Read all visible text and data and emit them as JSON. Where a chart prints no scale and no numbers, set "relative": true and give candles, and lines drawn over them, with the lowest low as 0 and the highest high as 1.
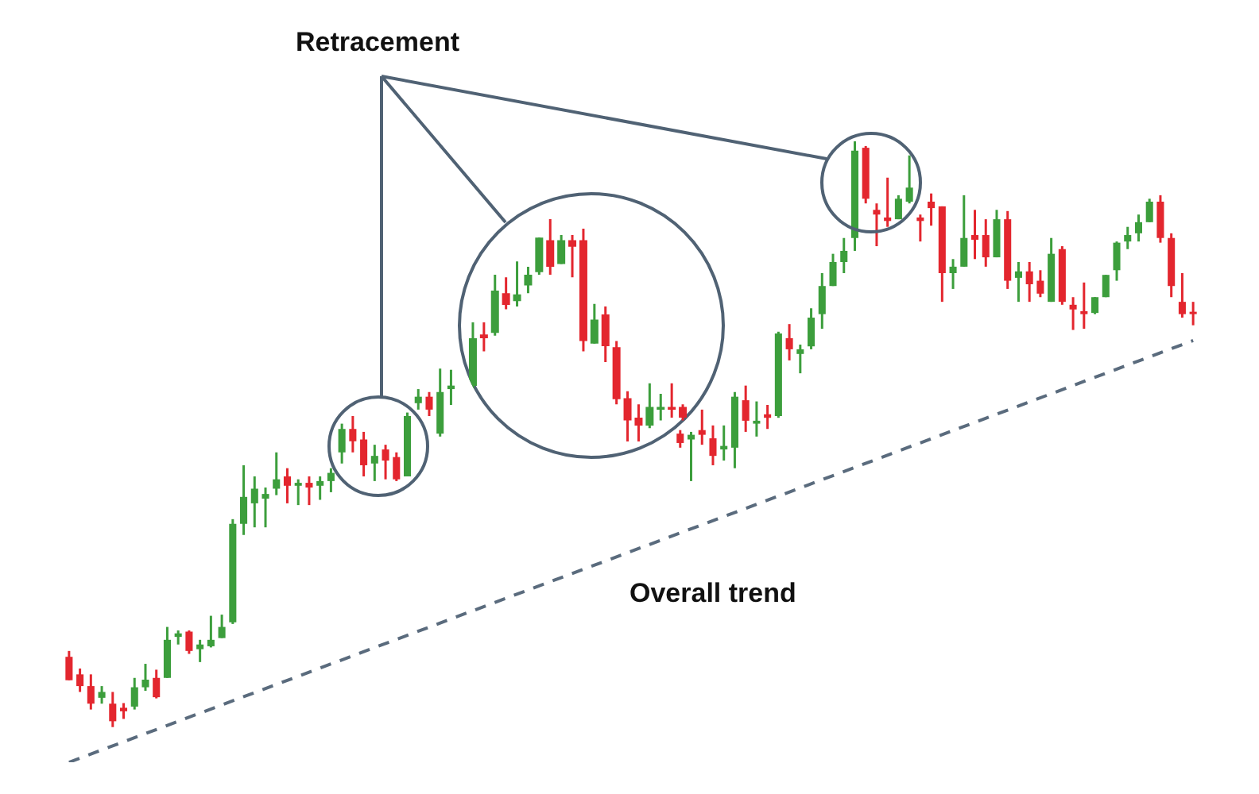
{
  "chart_data": [
    {
      "type": "candlestick",
      "relative": true,
      "categories": [
        null,
        null,
        null,
        null,
        null,
        null,
        null,
        null,
        null,
        null,
        null,
        null,
        null,
        null,
        null,
        null,
        null,
        null,
        null,
        null,
        null,
        null,
        null,
        null,
        null,
        null,
        null,
        null,
        null,
        null,
        null,
        null,
        null,
        null,
        null,
        null,
        null,
        null,
        null,
        null,
        null,
        null,
        null,
        null,
        null,
        null,
        null,
        null,
        null,
        null,
        null,
        null,
        null,
        null,
        null,
        null,
        null,
        null,
        null,
        null,
        null,
        null,
        null,
        null,
        null,
        null,
        null,
        null,
        null,
        null,
        null,
        null,
        null,
        null,
        null,
        null,
        null,
        null,
        null,
        null,
        null,
        null,
        null,
        null,
        null,
        null,
        null,
        null,
        null,
        null,
        null,
        null,
        null,
        null,
        null,
        null,
        null,
        null,
        null,
        null,
        null,
        null,
        null,
        null
      ],
      "ohlc": [
        [
          0.12,
          0.13,
          0.08,
          0.08
        ],
        [
          0.09,
          0.1,
          0.06,
          0.07
        ],
        [
          0.07,
          0.09,
          0.03,
          0.04
        ],
        [
          0.05,
          0.07,
          0.04,
          0.06
        ],
        [
          0.04,
          0.06,
          0,
          0.01
        ],
        [
          0.033,
          0.041,
          0.014,
          0.027
        ],
        [
          0.035,
          0.084,
          0.03,
          0.068
        ],
        [
          0.068,
          0.108,
          0.062,
          0.081
        ],
        [
          0.084,
          0.098,
          0.049,
          0.051
        ],
        [
          0.084,
          0.171,
          0.084,
          0.149
        ],
        [
          0.154,
          0.165,
          0.141,
          0.16
        ],
        [
          0.163,
          0.165,
          0.125,
          0.13
        ],
        [
          0.133,
          0.149,
          0.111,
          0.141
        ],
        [
          0.138,
          0.19,
          0.136,
          0.149
        ],
        [
          0.152,
          0.192,
          0.152,
          0.171
        ],
        [
          0.179,
          0.355,
          0.176,
          0.347
        ],
        [
          0.347,
          0.447,
          0.328,
          0.393
        ],
        [
          0.382,
          0.428,
          0.341,
          0.407
        ],
        [
          0.39,
          0.409,
          0.341,
          0.398
        ],
        [
          0.407,
          0.469,
          0.396,
          0.423
        ],
        [
          0.428,
          0.442,
          0.382,
          0.412
        ],
        [
          0.412,
          0.423,
          0.379,
          0.417
        ],
        [
          0.417,
          0.428,
          0.379,
          0.409
        ],
        [
          0.412,
          0.428,
          0.388,
          0.42
        ],
        [
          0.42,
          0.442,
          0.401,
          0.434
        ],
        [
          0.469,
          0.518,
          0.45,
          0.509
        ],
        [
          0.509,
          0.531,
          0.469,
          0.488
        ],
        [
          0.491,
          0.504,
          0.428,
          0.447
        ],
        [
          0.45,
          0.482,
          0.42,
          0.463
        ],
        [
          0.474,
          0.482,
          0.423,
          0.455
        ],
        [
          0.461,
          0.469,
          0.42,
          0.423
        ],
        [
          0.428,
          0.537,
          0.428,
          0.531
        ],
        [
          0.553,
          0.577,
          0.542,
          0.564
        ],
        [
          0.564,
          0.572,
          0.531,
          0.542
        ],
        [
          0.501,
          0.612,
          0.496,
          0.572
        ],
        [
          0.577,
          0.61,
          0.55,
          0.583
        ],
        null,
        null,
        null,
        null,
        null,
        null,
        null,
        null,
        null,
        null,
        null,
        null,
        null,
        null,
        null,
        null,
        null,
        null,
        null,
        null,
        [
          0.501,
          0.507,
          0.477,
          0.485
        ],
        [
          0.491,
          0.504,
          0.42,
          0.499
        ],
        [
          0.507,
          0.542,
          0.482,
          0.499
        ],
        [
          0.493,
          0.515,
          0.447,
          0.463
        ],
        [
          0.474,
          0.515,
          0.455,
          0.48
        ],
        [
          0.477,
          0.572,
          0.442,
          0.564
        ],
        [
          0.558,
          0.583,
          0.504,
          0.523
        ],
        [
          0.518,
          0.556,
          0.496,
          0.523
        ],
        [
          0.534,
          0.55,
          0.509,
          0.528
        ],
        [
          0.531,
          0.675,
          0.528,
          0.672
        ],
        [
          0.664,
          0.688,
          0.626,
          0.645
        ],
        [
          0.637,
          0.653,
          0.604,
          0.645
        ],
        [
          0.65,
          0.715,
          0.645,
          0.699
        ],
        [
          0.705,
          0.775,
          0.68,
          0.753
        ],
        [
          0.753,
          0.808,
          0.753,
          0.794
        ],
        [
          0.794,
          0.835,
          0.775,
          0.813
        ],
        [
          0.835,
          1,
          0.813,
          0.984
        ],
        [
          0.989,
          0.992,
          0.894,
          0.902
        ],
        [
          0.883,
          0.894,
          0.821,
          0.875
        ],
        [
          0.87,
          0.938,
          0.854,
          0.864
        ],
        [
          0.867,
          0.908,
          0.867,
          0.902
        ],
        [
          0.897,
          0.976,
          0.894,
          0.921
        ],
        [
          0.87,
          0.875,
          0.829,
          0.864
        ],
        [
          0.897,
          0.911,
          0.856,
          0.886
        ],
        [
          0.889,
          0.889,
          0.726,
          0.775
        ],
        [
          0.775,
          0.799,
          0.748,
          0.786
        ],
        [
          0.786,
          0.908,
          0.786,
          0.835
        ],
        [
          0.84,
          0.883,
          0.799,
          0.832
        ],
        [
          0.84,
          0.867,
          0.786,
          0.802
        ],
        [
          0.802,
          0.883,
          0.802,
          0.867
        ],
        [
          0.867,
          0.881,
          0.748,
          0.762
        ],
        [
          0.767,
          0.794,
          0.726,
          0.778
        ],
        [
          0.778,
          0.794,
          0.726,
          0.756
        ],
        [
          0.762,
          0.78,
          0.734,
          0.74
        ],
        [
          0.726,
          0.835,
          0.726,
          0.808
        ],
        [
          0.816,
          0.821,
          0.721,
          0.726
        ],
        [
          0.721,
          0.734,
          0.678,
          0.713
        ],
        [
          0.71,
          0.759,
          0.68,
          0.705
        ],
        [
          0.707,
          0.734,
          0.705,
          0.734
        ],
        [
          0.734,
          0.772,
          0.734,
          0.772
        ],
        [
          0.78,
          0.829,
          0.762,
          0.827
        ],
        [
          0.829,
          0.854,
          0.816,
          0.84
        ],
        [
          0.843,
          0.875,
          0.829,
          0.862
        ],
        [
          0.862,
          0.902,
          0.862,
          0.897
        ],
        [
          0.897,
          0.908,
          0.827,
          0.835
        ],
        [
          0.835,
          0.843,
          0.734,
          0.753
        ],
        [
          0.726,
          0.775,
          0.699,
          0.705
        ],
        [
          0.707,
          0.726,
          0.686,
          0.705
        ]
      ],
      "colors": [
        "#e3262e",
        "#e3262e",
        "#e3262e",
        "#3c9e3c",
        "#e3262e",
        "#e3262e",
        "#3c9e3c",
        "#3c9e3c",
        "#e3262e",
        "#3c9e3c",
        "#3c9e3c",
        "#e3262e",
        "#3c9e3c",
        "#3c9e3c",
        "#3c9e3c",
        "#3c9e3c",
        "#3c9e3c",
        "#3c9e3c",
        "#3c9e3c",
        "#3c9e3c",
        "#e3262e",
        "#3c9e3c",
        "#e3262e",
        "#3c9e3c",
        "#3c9e3c",
        "#3c9e3c",
        "#e3262e",
        "#e3262e",
        "#3c9e3c",
        "#e3262e",
        "#e3262e",
        "#3c9e3c",
        "#3c9e3c",
        "#e3262e",
        "#3c9e3c",
        "#3c9e3c",
        null,
        null,
        null,
        null,
        null,
        null,
        null,
        null,
        null,
        null,
        null,
        null,
        null,
        null,
        null,
        null,
        null,
        null,
        null,
        null,
        "#e3262e",
        "#3c9e3c",
        "#e3262e",
        "#e3262e",
        "#3c9e3c",
        "#3c9e3c",
        "#e3262e",
        "#3c9e3c",
        "#e3262e",
        "#3c9e3c",
        "#e3262e",
        "#3c9e3c",
        "#3c9e3c",
        "#3c9e3c",
        "#3c9e3c",
        "#3c9e3c",
        "#3c9e3c",
        "#e3262e",
        "#e3262e",
        "#e3262e",
        "#3c9e3c",
        "#3c9e3c",
        "#e3262e",
        "#e3262e",
        "#e3262e",
        "#3c9e3c",
        "#3c9e3c",
        "#e3262e",
        "#e3262e",
        "#3c9e3c",
        "#e3262e",
        "#3c9e3c",
        "#e3262e",
        "#e3262e",
        "#3c9e3c",
        "#e3262e",
        "#e3262e",
        "#e3262e",
        "#3c9e3c",
        "#3c9e3c",
        "#3c9e3c",
        "#3c9e3c",
        "#3c9e3c",
        "#3c9e3c",
        "#e3262e",
        "#e3262e",
        "#e3262e",
        "#e3262e"
      ],
      "series": [
        {
          "type": "line",
          "color": "#5a6b7d",
          "line_style": "dashed",
          "values": [
            -0.06,
            null,
            null,
            null,
            null,
            null,
            null,
            null,
            null,
            null,
            null,
            null,
            null,
            null,
            null,
            null,
            null,
            null,
            null,
            null,
            null,
            null,
            null,
            null,
            null,
            null,
            null,
            null,
            null,
            null,
            null,
            null,
            null,
            null,
            null,
            null,
            null,
            null,
            null,
            null,
            null,
            null,
            null,
            null,
            null,
            null,
            null,
            null,
            null,
            null,
            null,
            null,
            null,
            null,
            null,
            null,
            null,
            null,
            null,
            null,
            null,
            null,
            null,
            null,
            null,
            null,
            null,
            null,
            null,
            null,
            null,
            null,
            null,
            null,
            null,
            null,
            null,
            null,
            null,
            null,
            null,
            null,
            null,
            null,
            null,
            null,
            null,
            null,
            null,
            null,
            null,
            null,
            null,
            null,
            null,
            null,
            null,
            null,
            null,
            null,
            null,
            null,
            null,
            0.66
          ]
        }
      ],
      "annotations": [
        "Retracement",
        "Overall trend"
      ]
    },
    {
      "type": "candlestick",
      "relative": true,
      "categories": [
        null,
        null,
        null,
        null,
        null,
        null,
        null,
        null,
        null,
        null,
        null,
        null,
        null,
        null,
        null,
        null,
        null,
        null,
        null,
        null
      ],
      "ohlc": [
        [
          0.25,
          0.536,
          0.238,
          0.464
        ],
        [
          0.481,
          0.536,
          0.405,
          0.464
        ],
        [
          0.488,
          0.75,
          0.476,
          0.679
        ],
        [
          0.667,
          0.738,
          0.595,
          0.614
        ],
        [
          0.631,
          0.81,
          0.607,
          0.662
        ],
        [
          0.702,
          0.786,
          0.667,
          0.75
        ],
        [
          0.762,
          0.917,
          0.75,
          0.917
        ],
        [
          0.905,
          1,
          0.75,
          0.786
        ],
        [
          0.798,
          0.929,
          0.798,
          0.905
        ],
        [
          0.905,
          0.929,
          0.738,
          0.876
        ],
        [
          0.905,
          0.957,
          0.405,
          0.452
        ],
        [
          0.44,
          0.619,
          0.44,
          0.548
        ],
        [
          0.571,
          0.607,
          0.357,
          0.429
        ],
        [
          0.424,
          0.452,
          0.167,
          0.19
        ],
        [
          0.195,
          0.226,
          0,
          0.095
        ],
        [
          0.107,
          0.167,
          0,
          0.071
        ],
        [
          0.071,
          0.262,
          0.06,
          0.155
        ],
        [
          0.143,
          0.214,
          0.095,
          0.155
        ],
        [
          0.155,
          0.262,
          0.107,
          0.143
        ],
        [
          0.155,
          0.167,
          0.095,
          0.107
        ]
      ],
      "colors": [
        "#3c9e3c",
        "#e3262e",
        "#3c9e3c",
        "#e3262e",
        "#3c9e3c",
        "#3c9e3c",
        "#3c9e3c",
        "#e3262e",
        "#3c9e3c",
        "#e3262e",
        "#e3262e",
        "#3c9e3c",
        "#e3262e",
        "#e3262e",
        "#e3262e",
        "#e3262e",
        "#3c9e3c",
        "#3c9e3c",
        "#e3262e",
        "#e3262e"
      ]
    }
  ]
}
